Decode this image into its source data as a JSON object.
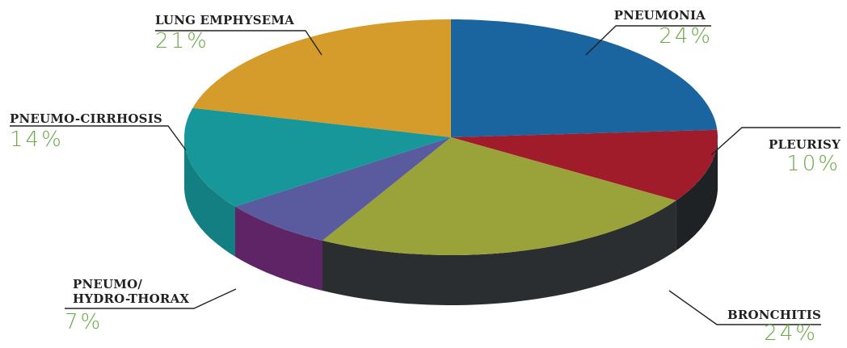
{
  "chart_data": {
    "type": "pie",
    "title": "",
    "slices": [
      {
        "label": "PNEUMONIA",
        "percent_label": "24%",
        "value": 24,
        "color": "#1a64a0",
        "side_color": "#0f3f66"
      },
      {
        "label": "PLEURISY",
        "percent_label": "10%",
        "value": 10,
        "color": "#a11c2b",
        "side_color": "#1f2224"
      },
      {
        "label": "BRONCHITIS",
        "percent_label": "24%",
        "value": 24,
        "color": "#9aa23a",
        "side_color": "#2b2e30"
      },
      {
        "label": "PNEUMO/\nHYDRO-THORAX",
        "percent_label": "7%",
        "value": 7,
        "color": "#5a5a9e",
        "side_color": "#5f2466"
      },
      {
        "label": "PNEUMO-CIRRHOSIS",
        "percent_label": "14%",
        "value": 14,
        "color": "#17979a",
        "side_color": "#137f82"
      },
      {
        "label": "LUNG EMPHYSEMA",
        "percent_label": "21%",
        "value": 21,
        "color": "#d59b2b",
        "side_color": "#9b7020"
      }
    ],
    "label_color": "#222222",
    "percent_color": "#6aaa45",
    "leader_line_color": "#222222"
  }
}
